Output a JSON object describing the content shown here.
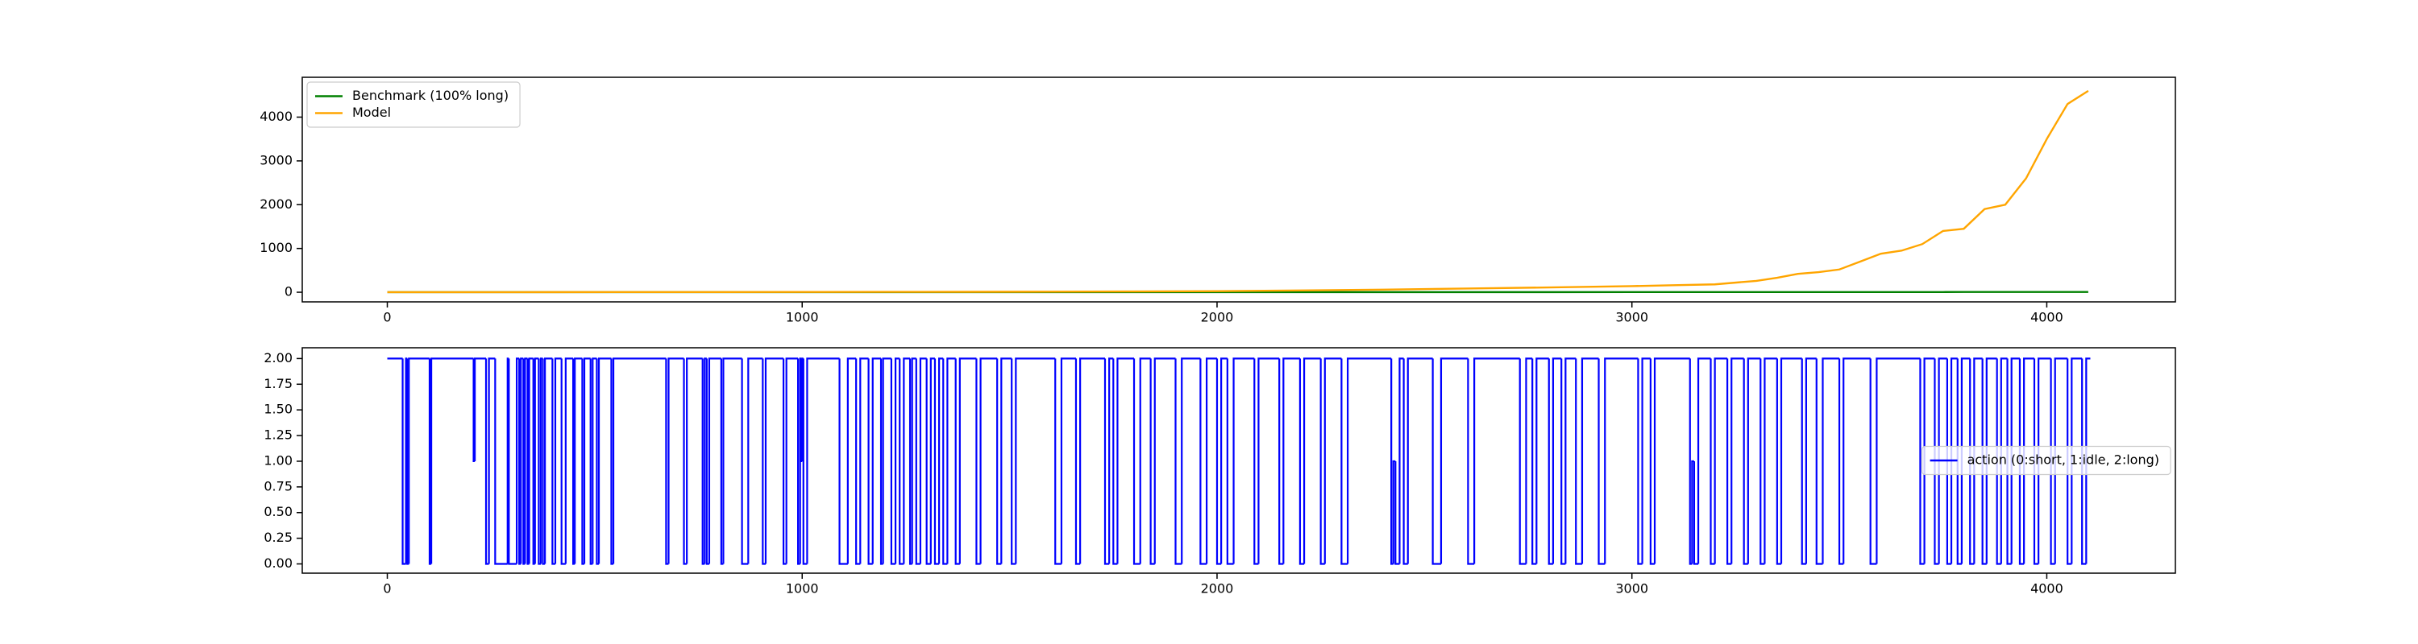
{
  "chart_data": [
    {
      "type": "line",
      "x": [
        0,
        200,
        400,
        600,
        800,
        1000,
        1200,
        1400,
        1600,
        1800,
        2000,
        2200,
        2400,
        2600,
        2800,
        3000,
        3100,
        3200,
        3300,
        3350,
        3400,
        3450,
        3500,
        3550,
        3600,
        3650,
        3700,
        3750,
        3800,
        3850,
        3900,
        3950,
        4000,
        4050,
        4100
      ],
      "series": [
        {
          "name": "Benchmark (100% long)",
          "color": "green",
          "values": [
            1,
            1,
            1,
            1,
            1,
            1,
            1,
            2,
            2,
            2,
            2,
            3,
            3,
            3,
            3,
            4,
            4,
            4,
            4,
            4,
            4,
            5,
            5,
            5,
            5,
            5,
            5,
            5,
            6,
            6,
            6,
            6,
            6,
            6,
            6
          ]
        },
        {
          "name": "Model",
          "color": "orange",
          "values": [
            1,
            2,
            3,
            4,
            5,
            6,
            8,
            10,
            13,
            18,
            25,
            40,
            60,
            85,
            110,
            140,
            160,
            180,
            260,
            330,
            420,
            460,
            520,
            700,
            880,
            950,
            1100,
            1400,
            1450,
            1900,
            2000,
            2600,
            3500,
            4300,
            4600
          ]
        }
      ],
      "xlim": [
        -205,
        4310
      ],
      "xticks": [
        0,
        1000,
        2000,
        3000,
        4000
      ],
      "ylim": [
        -220,
        4910
      ],
      "yticks": [
        0,
        1000,
        2000,
        3000,
        4000
      ],
      "legend": "upper left"
    },
    {
      "type": "line",
      "x": [
        0,
        37,
        45,
        48,
        52,
        102,
        106,
        208,
        211,
        238,
        245,
        260,
        290,
        293,
        312,
        318,
        322,
        328,
        332,
        338,
        342,
        352,
        356,
        365,
        370,
        375,
        380,
        398,
        405,
        420,
        430,
        448,
        452,
        470,
        475,
        490,
        495,
        505,
        510,
        540,
        545,
        672,
        678,
        715,
        722,
        760,
        765,
        770,
        776,
        805,
        810,
        855,
        870,
        905,
        912,
        955,
        962,
        990,
        995,
        998,
        1000,
        1003,
        1012,
        1090,
        1110,
        1130,
        1140,
        1160,
        1170,
        1190,
        1195,
        1215,
        1225,
        1235,
        1245,
        1260,
        1265,
        1275,
        1285,
        1300,
        1310,
        1320,
        1330,
        1340,
        1350,
        1370,
        1380,
        1420,
        1430,
        1470,
        1480,
        1505,
        1515,
        1610,
        1625,
        1660,
        1670,
        1730,
        1740,
        1750,
        1760,
        1800,
        1815,
        1840,
        1850,
        1900,
        1915,
        1960,
        1975,
        2000,
        2010,
        2025,
        2040,
        2090,
        2100,
        2150,
        2160,
        2200,
        2210,
        2250,
        2260,
        2300,
        2315,
        2420,
        2425,
        2430,
        2440,
        2450,
        2460,
        2520,
        2540,
        2605,
        2620,
        2730,
        2745,
        2760,
        2770,
        2800,
        2810,
        2830,
        2840,
        2865,
        2880,
        2920,
        2935,
        3015,
        3025,
        3045,
        3055,
        3140,
        3145,
        3150,
        3160,
        3190,
        3200,
        3230,
        3240,
        3270,
        3280,
        3310,
        3320,
        3350,
        3360,
        3410,
        3420,
        3445,
        3460,
        3500,
        3510,
        3575,
        3590,
        3695,
        3705,
        3730,
        3740,
        3760,
        3770,
        3785,
        3795,
        3815,
        3825,
        3845,
        3855,
        3880,
        3890,
        3905,
        3915,
        3935,
        3945,
        3970,
        3980,
        4010,
        4020,
        4050,
        4060,
        4085,
        4095,
        4105
      ],
      "series": [
        {
          "name": "action (0:short, 1:idle, 2:long)",
          "color": "blue",
          "values": [
            2,
            0,
            2,
            0,
            2,
            0,
            2,
            1,
            2,
            0,
            2,
            0,
            2,
            0,
            2,
            0,
            2,
            0,
            2,
            0,
            2,
            0,
            2,
            0,
            2,
            0,
            2,
            0,
            2,
            0,
            2,
            0,
            2,
            0,
            2,
            0,
            2,
            0,
            2,
            0,
            2,
            0,
            2,
            0,
            2,
            0,
            2,
            0,
            2,
            0,
            2,
            0,
            2,
            0,
            2,
            0,
            2,
            0,
            2,
            1,
            2,
            0,
            2,
            0,
            2,
            0,
            2,
            0,
            2,
            0,
            2,
            0,
            2,
            0,
            2,
            0,
            2,
            0,
            2,
            0,
            2,
            0,
            2,
            0,
            2,
            0,
            2,
            0,
            2,
            0,
            2,
            0,
            2,
            0,
            2,
            0,
            2,
            0,
            2,
            0,
            2,
            0,
            2,
            0,
            2,
            0,
            2,
            0,
            2,
            0,
            2,
            0,
            2,
            0,
            2,
            0,
            2,
            0,
            2,
            0,
            2,
            0,
            2,
            0,
            1,
            0,
            2,
            0,
            2,
            0,
            2,
            0,
            2,
            0,
            2,
            0,
            2,
            0,
            2,
            0,
            2,
            0,
            2,
            0,
            2,
            0,
            2,
            0,
            2,
            0,
            1,
            0,
            2,
            0,
            2,
            0,
            2,
            0,
            2,
            0,
            2,
            0,
            2,
            0,
            2,
            0,
            2,
            0,
            2,
            0,
            2,
            0,
            2,
            0,
            2,
            0,
            2,
            0,
            2,
            0,
            2,
            0,
            2,
            0,
            2,
            0,
            2,
            0,
            2,
            0,
            2,
            0,
            2,
            0,
            2,
            0,
            2,
            2
          ]
        }
      ],
      "drawstyle": "steps-post",
      "xlim": [
        -205,
        4310
      ],
      "xticks": [
        0,
        1000,
        2000,
        3000,
        4000
      ],
      "ylim": [
        -0.09,
        2.105
      ],
      "yticks": [
        {
          "value": 0,
          "label": "0.00"
        },
        {
          "value": 0.25,
          "label": "0.25"
        },
        {
          "value": 0.5,
          "label": "0.50"
        },
        {
          "value": 0.75,
          "label": "0.75"
        },
        {
          "value": 1,
          "label": "1.00"
        },
        {
          "value": 1.25,
          "label": "1.25"
        },
        {
          "value": 1.5,
          "label": "1.50"
        },
        {
          "value": 1.75,
          "label": "1.75"
        },
        {
          "value": 2,
          "label": "2.00"
        }
      ],
      "legend": "center right"
    }
  ]
}
